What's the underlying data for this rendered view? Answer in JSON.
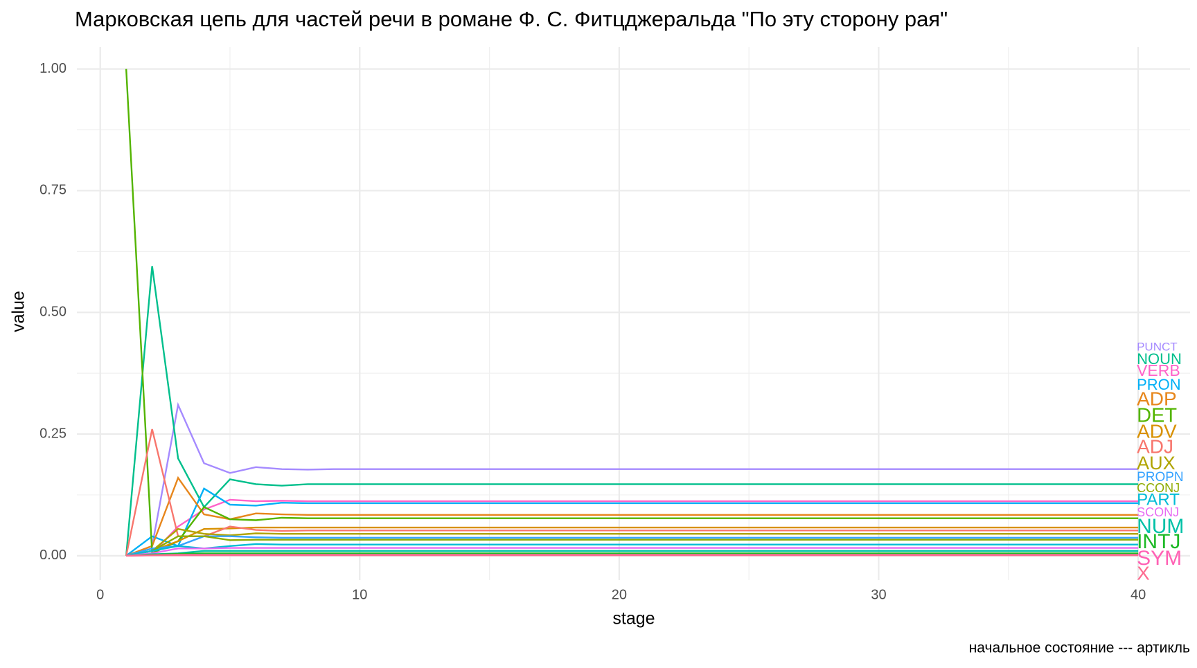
{
  "chart_data": {
    "type": "line",
    "title": "Марковская цепь для частей речи в романе Ф. С. Фитцджеральда \"По эту сторону рая\"",
    "x_label": "stage",
    "y_label": "value",
    "caption": "начальное состояние --- артикль",
    "x": [
      1,
      2,
      3,
      4,
      5,
      6,
      7,
      8,
      9,
      10,
      40
    ],
    "xlim": [
      -0.9,
      42
    ],
    "xticks": [
      0,
      10,
      20,
      30,
      40
    ],
    "ylim": [
      -0.05,
      1.045
    ],
    "yticks": [
      {
        "value": 0,
        "label": "0.00"
      },
      {
        "value": 0.25,
        "label": "0.25"
      },
      {
        "value": 0.5,
        "label": "0.50"
      },
      {
        "value": 0.75,
        "label": "0.75"
      },
      {
        "value": 1,
        "label": "1.00"
      }
    ],
    "grid": true,
    "series": [
      {
        "name": "PUNCT",
        "color": "#A58AFF",
        "values": [
          0,
          0.02,
          0.31,
          0.19,
          0.17,
          0.182,
          0.178,
          0.177,
          0.178,
          0.178,
          0.178
        ]
      },
      {
        "name": "NOUN",
        "color": "#00BF8C",
        "values": [
          0,
          0.595,
          0.2,
          0.1,
          0.157,
          0.147,
          0.144,
          0.147,
          0.147,
          0.147,
          0.147
        ]
      },
      {
        "name": "VERB",
        "color": "#FF62C9",
        "values": [
          0,
          0.005,
          0.06,
          0.095,
          0.115,
          0.112,
          0.113,
          0.112,
          0.112,
          0.112,
          0.112
        ]
      },
      {
        "name": "PRON",
        "color": "#00B0F6",
        "values": [
          0,
          0.04,
          0.02,
          0.138,
          0.105,
          0.103,
          0.109,
          0.108,
          0.108,
          0.108,
          0.108
        ]
      },
      {
        "name": "ADP",
        "color": "#E7861B",
        "values": [
          0,
          0.02,
          0.16,
          0.085,
          0.075,
          0.087,
          0.085,
          0.084,
          0.084,
          0.084,
          0.084
        ]
      },
      {
        "name": "DET",
        "color": "#53B400",
        "values": [
          1,
          0.005,
          0.03,
          0.1,
          0.075,
          0.073,
          0.078,
          0.077,
          0.077,
          0.077,
          0.077
        ]
      },
      {
        "name": "ADV",
        "color": "#D89000",
        "values": [
          0,
          0.01,
          0.03,
          0.055,
          0.056,
          0.058,
          0.058,
          0.058,
          0.058,
          0.058,
          0.058
        ]
      },
      {
        "name": "ADJ",
        "color": "#F8766D",
        "values": [
          0,
          0.26,
          0.04,
          0.04,
          0.06,
          0.053,
          0.051,
          0.052,
          0.052,
          0.052,
          0.052
        ]
      },
      {
        "name": "AUX",
        "color": "#B0A400",
        "values": [
          0,
          0.01,
          0.055,
          0.045,
          0.042,
          0.046,
          0.045,
          0.045,
          0.045,
          0.045,
          0.045
        ]
      },
      {
        "name": "PROPN",
        "color": "#35A2FF",
        "values": [
          0,
          0.015,
          0.02,
          0.04,
          0.04,
          0.038,
          0.037,
          0.037,
          0.037,
          0.037,
          0.037
        ]
      },
      {
        "name": "CCONJ",
        "color": "#8EAB00",
        "values": [
          0,
          0.01,
          0.04,
          0.04,
          0.032,
          0.033,
          0.033,
          0.033,
          0.033,
          0.033,
          0.033
        ]
      },
      {
        "name": "PART",
        "color": "#00BCD6",
        "values": [
          0,
          0.01,
          0.02,
          0.015,
          0.02,
          0.024,
          0.023,
          0.023,
          0.023,
          0.023,
          0.023
        ]
      },
      {
        "name": "SCONJ",
        "color": "#E76BF3",
        "values": [
          0,
          0.005,
          0.015,
          0.015,
          0.016,
          0.016,
          0.016,
          0.016,
          0.016,
          0.016,
          0.016
        ]
      },
      {
        "name": "NUM",
        "color": "#00C1A7",
        "values": [
          0,
          0.003,
          0.005,
          0.01,
          0.01,
          0.01,
          0.01,
          0.01,
          0.01,
          0.01,
          0.01
        ]
      },
      {
        "name": "INTJ",
        "color": "#1CB925",
        "values": [
          0,
          0.002,
          0.004,
          0.005,
          0.005,
          0.005,
          0.005,
          0.005,
          0.005,
          0.005,
          0.005
        ]
      },
      {
        "name": "SYM",
        "color": "#FF61B4",
        "values": [
          0,
          0.001,
          0.002,
          0.002,
          0.002,
          0.002,
          0.002,
          0.002,
          0.002,
          0.002,
          0.002
        ]
      },
      {
        "name": "X",
        "color": "#FD6C91",
        "values": [
          0,
          0.001,
          0.001,
          0.001,
          0.001,
          0.001,
          0.001,
          0.001,
          0.001,
          0.001,
          0.001
        ]
      }
    ]
  }
}
